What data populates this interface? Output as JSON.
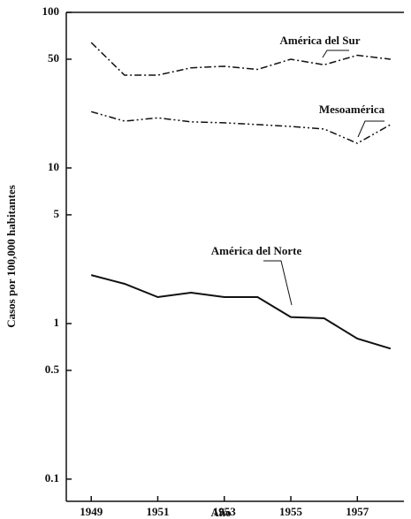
{
  "chart_data": {
    "type": "line",
    "x_label": "Año",
    "y_label": "Casos por 100,000 habitantes",
    "x": [
      1949,
      1950,
      1951,
      1952,
      1953,
      1954,
      1955,
      1956,
      1957,
      1958
    ],
    "series": [
      {
        "name": "América del Sur",
        "color": "#111111",
        "linestyle": "dashdot",
        "values": [
          64,
          39.5,
          39.5,
          44,
          45,
          43,
          50,
          46,
          53,
          50
        ]
      },
      {
        "name": "Mesoamérica",
        "color": "#111111",
        "linestyle": "dashdotdot",
        "values": [
          23,
          20,
          21,
          19.8,
          19.5,
          19,
          18.5,
          17.8,
          14.4,
          19
        ]
      },
      {
        "name": "América del Norte",
        "color": "#111111",
        "linestyle": "solid",
        "values": [
          2.05,
          1.8,
          1.48,
          1.58,
          1.48,
          1.48,
          1.1,
          1.08,
          0.8,
          0.69
        ]
      }
    ],
    "xlim": [
      1948.25,
      1958.4
    ],
    "xticks": [
      1949,
      1951,
      1953,
      1955,
      1957
    ],
    "ylim": [
      0.072,
      100
    ],
    "yticks": [
      0.1,
      0.5,
      1,
      5,
      10,
      50,
      100
    ],
    "ylog": true
  }
}
